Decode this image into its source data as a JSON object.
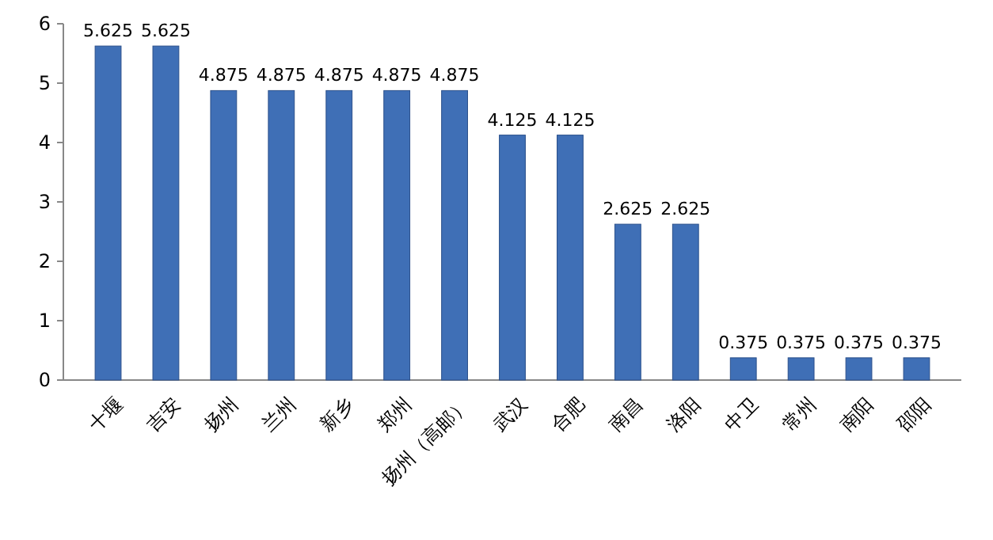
{
  "chart_data": {
    "type": "bar",
    "categories": [
      "十堰",
      "吉安",
      "扬州",
      "兰州",
      "新乡",
      "郑州",
      "扬州（高邮）",
      "武汉",
      "合肥",
      "南昌",
      "洛阳",
      "中卫",
      "常州",
      "南阳",
      "邵阳"
    ],
    "values": [
      5.625,
      5.625,
      4.875,
      4.875,
      4.875,
      4.875,
      4.875,
      4.125,
      4.125,
      2.625,
      2.625,
      0.375,
      0.375,
      0.375,
      0.375
    ],
    "color": "#3f6fb6",
    "ylim": [
      0,
      6
    ],
    "yticks": [
      0,
      1,
      2,
      3,
      4,
      5,
      6
    ],
    "data_labels": true,
    "grid": false
  }
}
